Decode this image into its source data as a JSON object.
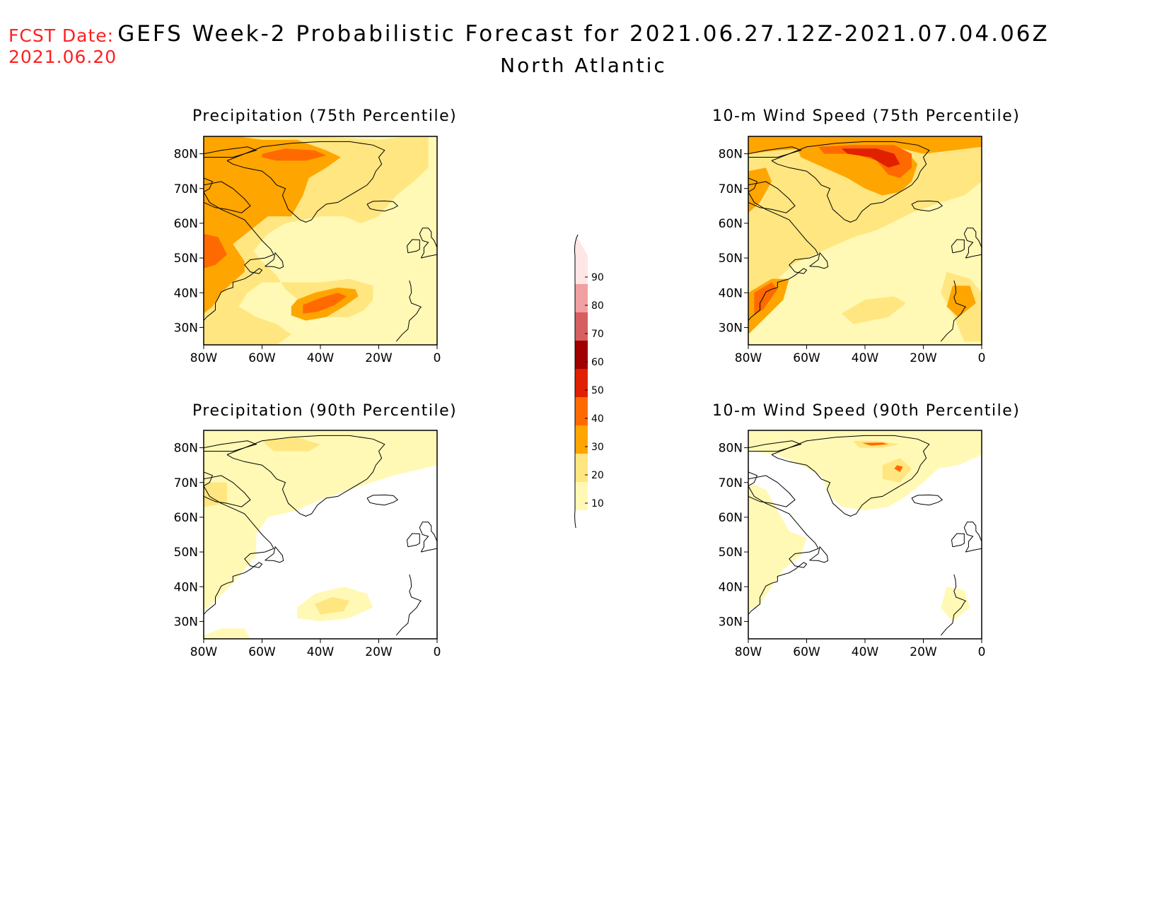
{
  "fcst_label": "FCST Date:",
  "fcst_date": "2021.06.20",
  "title": "GEFS Week-2 Probabilistic Forecast for 2021.06.27.12Z-2021.07.04.06Z",
  "subtitle": "North Atlantic",
  "panels": [
    {
      "title": "Precipitation (75th Percentile)"
    },
    {
      "title": "10-m Wind Speed (75th Percentile)"
    },
    {
      "title": "Precipitation (90th Percentile)"
    },
    {
      "title": "10-m Wind Speed (90th Percentile)"
    }
  ],
  "axes": {
    "lat_labels": [
      "80N",
      "70N",
      "60N",
      "50N",
      "40N",
      "30N"
    ],
    "lon_labels": [
      "80W",
      "60W",
      "40W",
      "20W",
      "0"
    ],
    "lat_values": [
      80,
      70,
      60,
      50,
      40,
      30
    ],
    "lon_values": [
      -80,
      -60,
      -40,
      -20,
      0
    ],
    "lat_range": [
      25,
      85
    ],
    "lon_range": [
      -80,
      0
    ]
  },
  "colorbar": {
    "levels": [
      "10",
      "20",
      "30",
      "40",
      "50",
      "60",
      "70",
      "80",
      "90"
    ],
    "colors": [
      "#fff9b5",
      "#ffe680",
      "#ffa500",
      "#ff6a00",
      "#e02000",
      "#a00000",
      "#d66060",
      "#f0a0a0",
      "#ffe6e6"
    ]
  }
}
